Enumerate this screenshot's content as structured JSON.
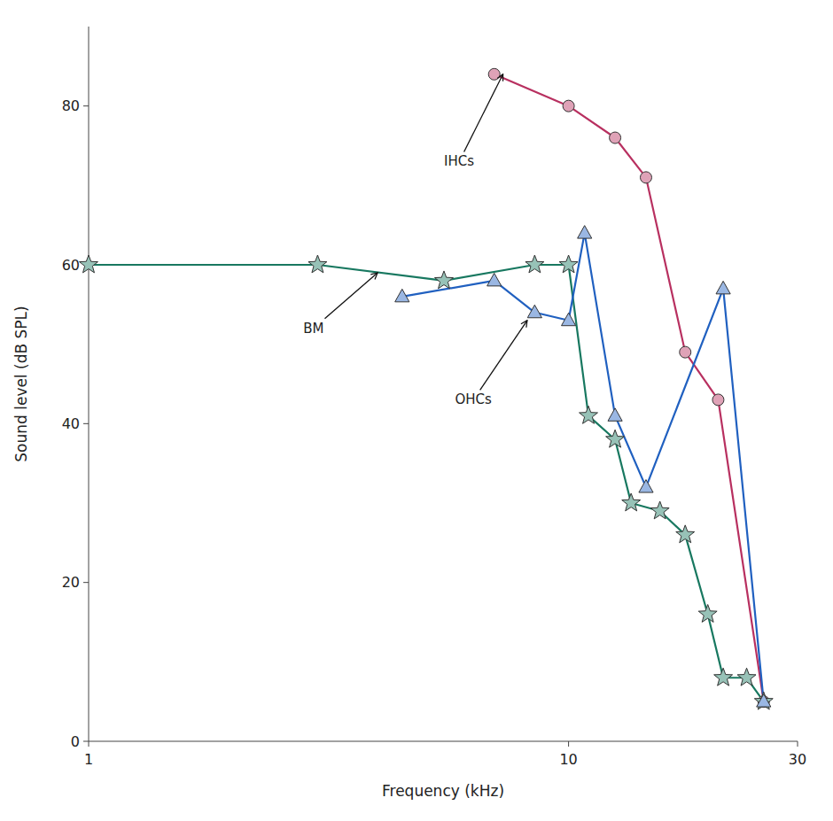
{
  "chart_data": {
    "type": "line",
    "xlabel": "Frequency (kHz)",
    "ylabel": "Sound level (dB SPL)",
    "log": "x",
    "grid": false,
    "xlim": [
      1,
      30
    ],
    "ylim": [
      0,
      90
    ],
    "xticks": [
      1,
      10,
      30
    ],
    "yticks": [
      0,
      20,
      40,
      60,
      80
    ],
    "series": [
      {
        "x": [
          7.0,
          10.0,
          12.5,
          14.5,
          17.5,
          20.5,
          25.5
        ],
        "values": [
          84,
          80,
          76,
          71,
          49,
          43,
          5
        ],
        "color": "#b83060",
        "marker": "circle"
      },
      {
        "x": [
          1.0,
          3.0,
          5.5,
          8.5,
          10.0,
          11.0,
          12.5,
          13.5,
          15.5,
          17.5,
          19.5,
          21.0,
          23.5,
          25.5
        ],
        "values": [
          60,
          60,
          58,
          60,
          60,
          41,
          38,
          30,
          29,
          26,
          16,
          8,
          8,
          5
        ],
        "color": "#187860",
        "marker": "star"
      },
      {
        "x": [
          4.5,
          7.0,
          8.5,
          10.0,
          10.8,
          12.5,
          14.5,
          21.0,
          25.5
        ],
        "values": [
          56,
          58,
          54,
          53,
          64,
          41,
          32,
          57,
          5
        ],
        "color": "#2060c0",
        "marker": "triangle"
      }
    ],
    "annotations": [
      {
        "text": "IHCs",
        "xy": [
          7.3,
          84
        ],
        "xytext": [
          5.5,
          73
        ]
      },
      {
        "text": "BM",
        "xy": [
          4.0,
          59
        ],
        "xytext": [
          2.8,
          52
        ]
      },
      {
        "text": "OHCs",
        "xy": [
          8.2,
          53
        ],
        "xytext": [
          5.8,
          43
        ]
      }
    ]
  }
}
